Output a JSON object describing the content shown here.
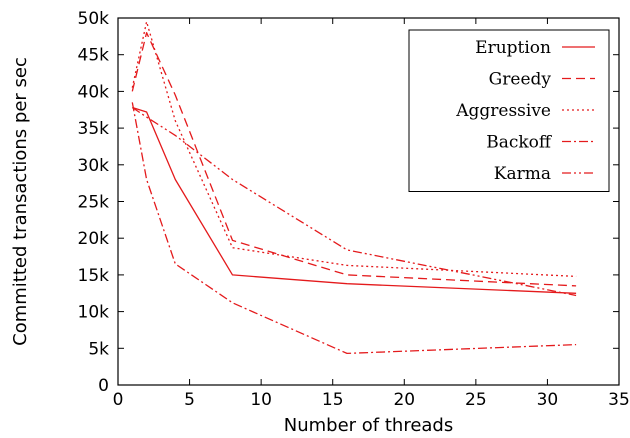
{
  "chart_data": {
    "type": "line",
    "xlabel": "Number of threads",
    "ylabel": "Committed transactions per sec",
    "xlim": [
      0,
      35
    ],
    "ylim": [
      0,
      50000
    ],
    "xticks": [
      0,
      5,
      10,
      15,
      20,
      25,
      30,
      35
    ],
    "xtick_labels": [
      "0",
      "5",
      "10",
      "15",
      "20",
      "25",
      "30",
      "35"
    ],
    "yticks": [
      0,
      5000,
      10000,
      15000,
      20000,
      25000,
      30000,
      35000,
      40000,
      45000,
      50000
    ],
    "ytick_labels": [
      "0",
      "5k",
      "10k",
      "15k",
      "20k",
      "25k",
      "30k",
      "35k",
      "40k",
      "45k",
      "50k"
    ],
    "grid": false,
    "legend_position": "top-right",
    "line_color": "#e41a1c",
    "series": [
      {
        "name": "Eruption",
        "dash": "solid",
        "x": [
          1,
          2,
          4,
          8,
          16,
          32
        ],
        "y": [
          37800,
          37200,
          28000,
          15000,
          13800,
          12500
        ]
      },
      {
        "name": "Greedy",
        "dash": "dashed",
        "x": [
          1,
          2,
          4,
          8,
          16,
          32
        ],
        "y": [
          40000,
          48000,
          39500,
          19700,
          15000,
          13500
        ]
      },
      {
        "name": "Aggressive",
        "dash": "dotted",
        "x": [
          1,
          2,
          4,
          8,
          16,
          32
        ],
        "y": [
          40500,
          49500,
          36000,
          18700,
          16300,
          14800
        ]
      },
      {
        "name": "Backoff",
        "dash": "dashdot",
        "x": [
          1,
          2,
          4,
          8,
          16,
          32
        ],
        "y": [
          38500,
          28000,
          16500,
          11200,
          4300,
          5500
        ]
      },
      {
        "name": "Karma",
        "dash": "dashdotdot",
        "x": [
          1,
          2,
          4,
          8,
          16,
          32
        ],
        "y": [
          37800,
          36500,
          34000,
          28000,
          18400,
          12200
        ]
      }
    ]
  }
}
